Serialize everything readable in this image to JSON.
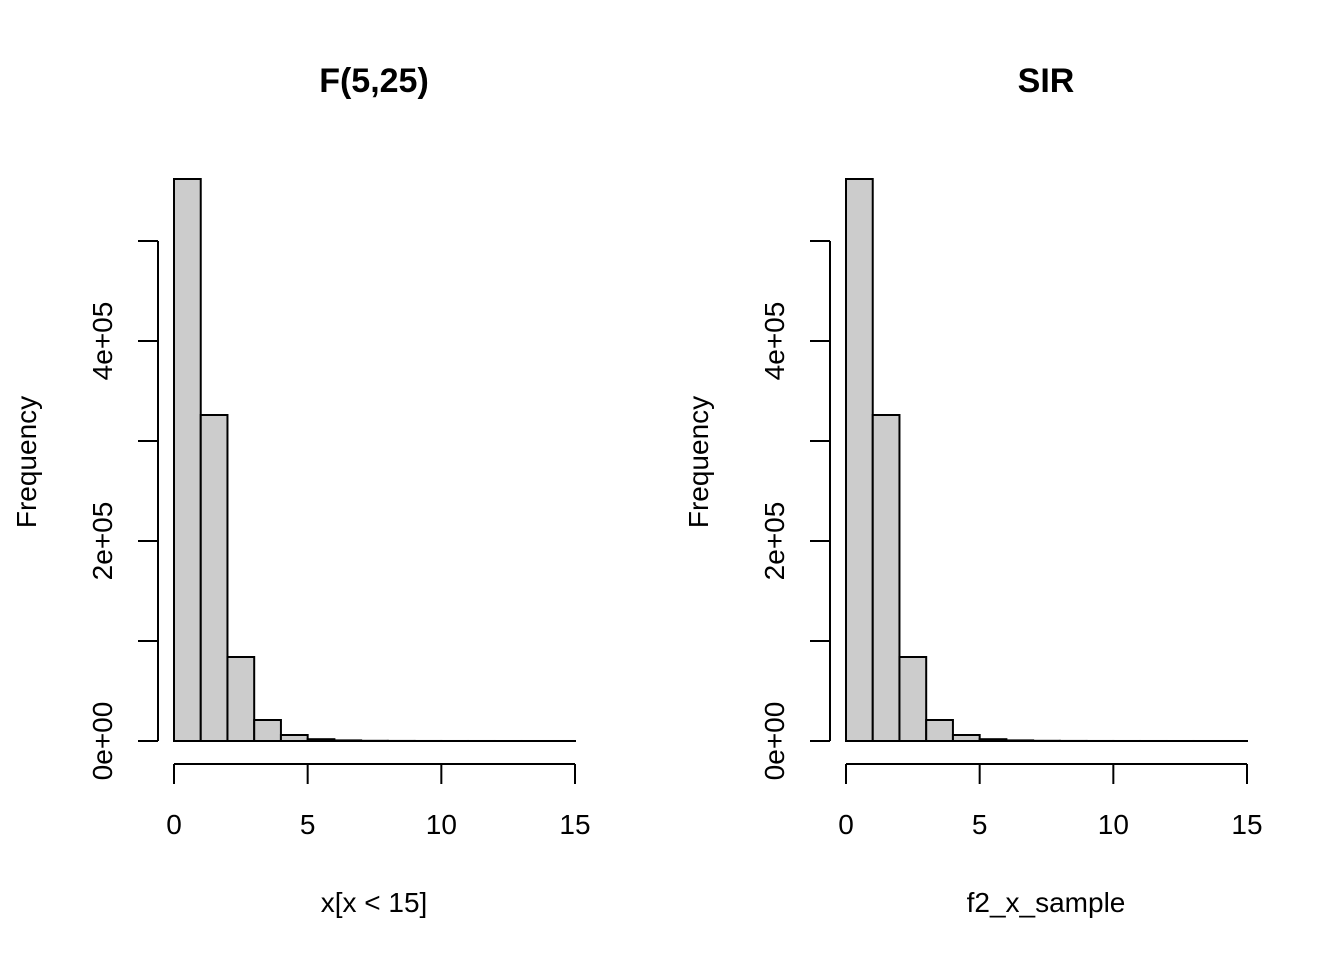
{
  "chart_data": [
    {
      "type": "bar",
      "title": "F(5,25)",
      "xlabel": "x[x < 15]",
      "ylabel": "Frequency",
      "bin_edges": [
        0,
        1,
        2,
        3,
        4,
        5,
        6,
        7,
        8,
        9,
        10,
        11,
        12,
        13,
        14,
        15
      ],
      "values": [
        562000,
        326000,
        84000,
        21000,
        6000,
        1800,
        600,
        200,
        80,
        30,
        15,
        8,
        4,
        2,
        1
      ],
      "xlim": [
        0,
        15
      ],
      "ylim": [
        0,
        500000
      ],
      "x_ticks": [
        0,
        5,
        10,
        15
      ],
      "x_tick_labels": [
        "0",
        "5",
        "10",
        "15"
      ],
      "y_ticks": [
        0,
        100000,
        200000,
        300000,
        400000,
        500000
      ],
      "y_tick_labels": [
        "0e+00",
        "",
        "2e+05",
        "",
        "4e+05",
        ""
      ],
      "grid": false,
      "bar_color": "#cccccc"
    },
    {
      "type": "bar",
      "title": "SIR",
      "xlabel": "f2_x_sample",
      "ylabel": "Frequency",
      "bin_edges": [
        0,
        1,
        2,
        3,
        4,
        5,
        6,
        7,
        8,
        9,
        10,
        11,
        12,
        13,
        14,
        15
      ],
      "values": [
        562000,
        326000,
        84000,
        21000,
        6000,
        1800,
        600,
        200,
        80,
        30,
        15,
        8,
        4,
        2,
        1
      ],
      "xlim": [
        0,
        15
      ],
      "ylim": [
        0,
        500000
      ],
      "x_ticks": [
        0,
        5,
        10,
        15
      ],
      "x_tick_labels": [
        "0",
        "5",
        "10",
        "15"
      ],
      "y_ticks": [
        0,
        100000,
        200000,
        300000,
        400000,
        500000
      ],
      "y_tick_labels": [
        "0e+00",
        "",
        "2e+05",
        "",
        "4e+05",
        ""
      ],
      "grid": false,
      "bar_color": "#cccccc"
    }
  ]
}
